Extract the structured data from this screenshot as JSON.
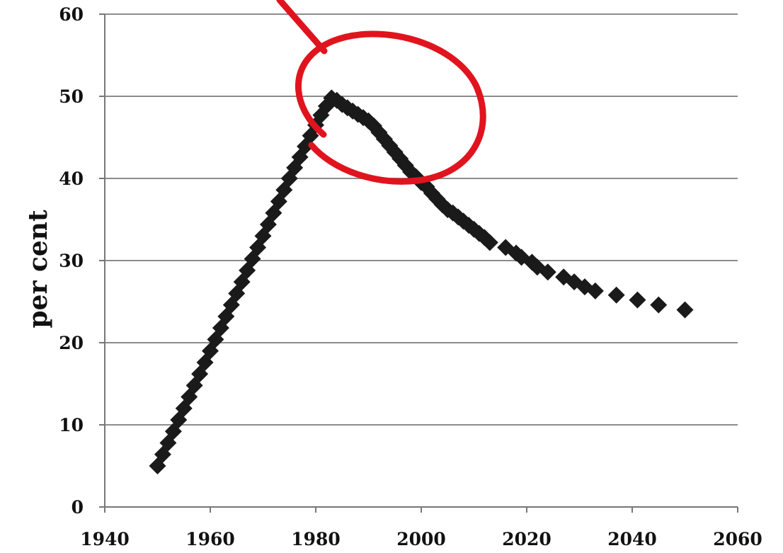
{
  "chart_data": {
    "type": "scatter",
    "title": "",
    "xlabel": "",
    "ylabel": "per cent",
    "xlim": [
      1940,
      2060
    ],
    "ylim": [
      0,
      60
    ],
    "x_ticks": [
      1940,
      1960,
      1980,
      2000,
      2020,
      2040,
      2060
    ],
    "y_ticks": [
      0,
      10,
      20,
      30,
      40,
      50,
      60
    ],
    "x_tick_labels": [
      "1940",
      "1960",
      "1980",
      "2000",
      "2020",
      "2040",
      "2060"
    ],
    "y_tick_labels": [
      "0",
      "10",
      "20",
      "30",
      "40",
      "50",
      "60"
    ],
    "grid": "horizontal",
    "legend": "none",
    "marker": "diamond",
    "marker_color": "#1a1a1a",
    "series": [
      {
        "x": [
          1950,
          1951,
          1952,
          1953,
          1954,
          1955,
          1956,
          1957,
          1958,
          1959,
          1960,
          1961,
          1962,
          1963,
          1964,
          1965,
          1966,
          1967,
          1968,
          1969,
          1970,
          1971,
          1972,
          1973,
          1974,
          1975,
          1976,
          1977,
          1978,
          1979,
          1980,
          1981,
          1982,
          1983,
          1984,
          1985,
          1986,
          1987,
          1988,
          1989,
          1990,
          1991,
          1992,
          1993,
          1994,
          1995,
          1996,
          1997,
          1998,
          1999,
          2000,
          2001,
          2002,
          2003,
          2004,
          2005,
          2006,
          2007,
          2008,
          2009,
          2010,
          2011,
          2012,
          2013,
          2016,
          2018,
          2019,
          2021,
          2022,
          2024,
          2027,
          2029,
          2031,
          2033,
          2037,
          2041,
          2045,
          2050
        ],
        "y": [
          5,
          6.4,
          7.8,
          9.2,
          10.6,
          12,
          13.4,
          14.8,
          16.2,
          17.6,
          19,
          20.4,
          21.8,
          23.2,
          24.6,
          26,
          27.4,
          28.8,
          30.2,
          31.6,
          33,
          34.4,
          35.8,
          37.2,
          38.6,
          40,
          41.3,
          42.6,
          43.9,
          45.2,
          46.5,
          47.7,
          48.8,
          49.8,
          49.5,
          49,
          48.6,
          48.2,
          47.8,
          47.4,
          47,
          46.4,
          45.6,
          44.8,
          44,
          43.2,
          42.4,
          41.6,
          40.8,
          40.2,
          39.5,
          39,
          38.2,
          37.5,
          36.8,
          36.2,
          35.8,
          35.3,
          34.8,
          34.3,
          33.8,
          33.3,
          32.8,
          32.2,
          31.6,
          30.9,
          30.4,
          29.8,
          29.2,
          28.6,
          28,
          27.4,
          26.8,
          26.3,
          25.8,
          25.2,
          24.6,
          24
        ],
        "__placeholder": ""
      }
    ],
    "annotations": [
      {
        "type": "ellipse",
        "color": "#e0141e",
        "description": "hand-drawn red circle around the peak"
      }
    ]
  }
}
